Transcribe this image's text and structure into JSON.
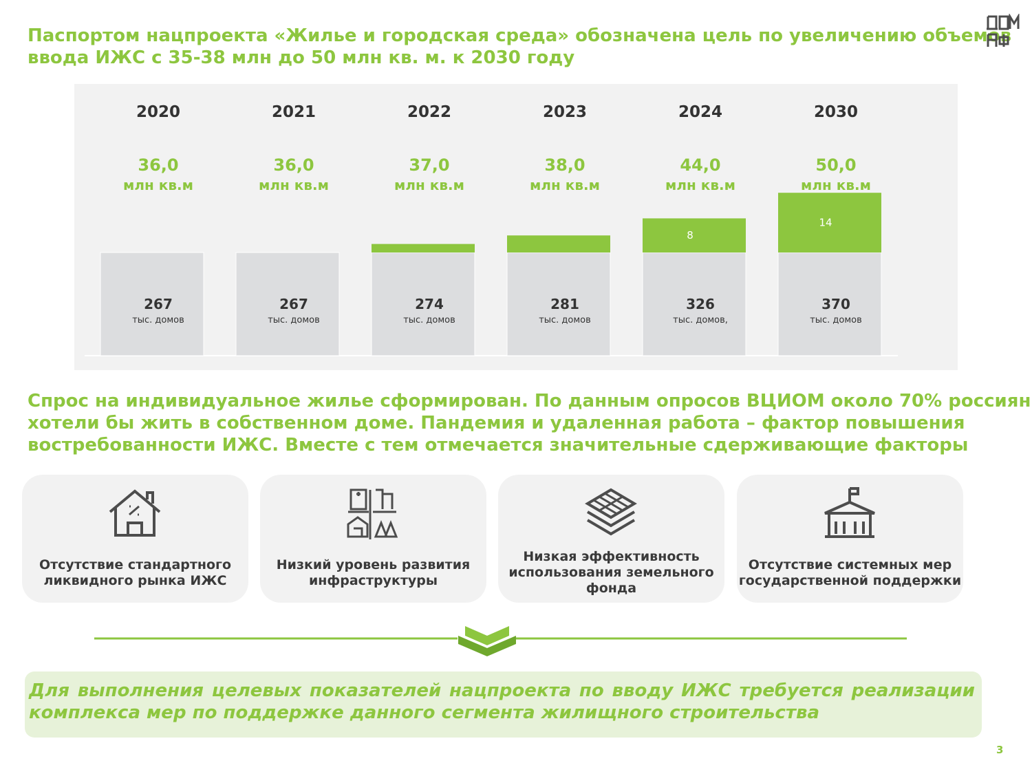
{
  "header": {
    "title": [
      "Паспортом нацпроекта «Жилье и городская среда» обозначена цель по увеличению объемов",
      "ввода ИЖС с 35-38 млн до 50 млн кв. м. к 2030 году"
    ]
  },
  "chart_data": {
    "type": "stacked-bar",
    "categories": [
      "2020",
      "2021",
      "2022",
      "2023",
      "2024",
      "2030"
    ],
    "targets": {
      "values": [
        36,
        36,
        37,
        38,
        44,
        50
      ],
      "value_labels": [
        "36,0",
        "36,0",
        "37,0",
        "38,0",
        "44,0",
        "50,0"
      ],
      "unit": "млн кв.м"
    },
    "houses": {
      "values": [
        267,
        267,
        274,
        281,
        326,
        370
      ],
      "units": [
        "тыс. домов",
        "тыс. домов",
        "тыс. домов",
        "тыс. домов",
        "тыс. домов,",
        "тыс. домов"
      ],
      "color": "#dcdddf"
    },
    "added": {
      "values": [
        null,
        null,
        2,
        4,
        8,
        14
      ],
      "color": "#8dc63f"
    }
  },
  "demand": {
    "text": [
      "Спрос на индивидуальное жилье сформирован. По данным опросов ВЦИОМ около 70% россиян",
      "хотели бы жить в собственном доме. Пандемия и удаленная работа – фактор повышения",
      "востребованности ИЖС. Вместе с тем отмечается значительные сдерживающие факторы"
    ]
  },
  "cards": [
    {
      "label": [
        "Отсутствие стандартного",
        "ликвидного рынка ИЖС"
      ]
    },
    {
      "label": [
        "Низкий уровень развития",
        "инфраструктуры"
      ]
    },
    {
      "label": [
        "Низкая эффективность",
        "использования земельного",
        "фонда"
      ]
    },
    {
      "label": [
        "Отсутствие системных мер",
        "государственной поддержки"
      ]
    }
  ],
  "conclusion": {
    "text": [
      "Для выполнения целевых показателей нацпроекта по вводу ИЖС требуется реализации",
      "комплекса мер по поддержке данного сегмента жилищного строительства"
    ]
  },
  "page_number": "3"
}
